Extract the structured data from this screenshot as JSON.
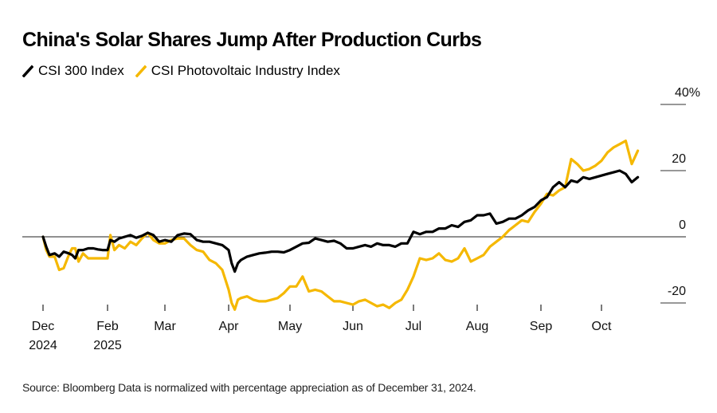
{
  "chart_data": {
    "type": "line",
    "title": "China's Solar Shares Jump After Production Curbs",
    "xlabel": "",
    "ylabel": "",
    "y_unit": "%",
    "ylim": [
      -20,
      40
    ],
    "y_ticks": [
      {
        "value": 40,
        "label": "40%"
      },
      {
        "value": 20,
        "label": "20"
      },
      {
        "value": 0,
        "label": "0"
      },
      {
        "value": -20,
        "label": "-20"
      }
    ],
    "x_ticks": [
      {
        "month": 0,
        "label": "Dec",
        "sublabel": "2024"
      },
      {
        "month": 1,
        "label": "Feb",
        "sublabel": "2025"
      },
      {
        "month": 2,
        "label": "Mar",
        "sublabel": ""
      },
      {
        "month": 3,
        "label": "Apr",
        "sublabel": ""
      },
      {
        "month": 4,
        "label": "May",
        "sublabel": ""
      },
      {
        "month": 5,
        "label": "Jun",
        "sublabel": ""
      },
      {
        "month": 6,
        "label": "Jul",
        "sublabel": ""
      },
      {
        "month": 7,
        "label": "Aug",
        "sublabel": ""
      },
      {
        "month": 8,
        "label": "Sep",
        "sublabel": ""
      },
      {
        "month": 9,
        "label": "Oct",
        "sublabel": ""
      }
    ],
    "baseline": 0,
    "legend_position": "top-left",
    "series": [
      {
        "name": "CSI 300 Index",
        "color": "#000000",
        "x": [
          0,
          0.05,
          0.1,
          0.18,
          0.25,
          0.32,
          0.4,
          0.45,
          0.5,
          0.55,
          0.62,
          0.7,
          0.78,
          0.85,
          0.92,
          1.0,
          1.05,
          1.12,
          1.2,
          1.3,
          1.4,
          1.5,
          1.6,
          1.7,
          1.8,
          1.9,
          2.0,
          2.1,
          2.2,
          2.3,
          2.4,
          2.5,
          2.6,
          2.7,
          2.8,
          2.9,
          3.0,
          3.05,
          3.1,
          3.15,
          3.2,
          3.3,
          3.4,
          3.5,
          3.6,
          3.7,
          3.8,
          3.9,
          4.0,
          4.1,
          4.2,
          4.3,
          4.4,
          4.5,
          4.6,
          4.7,
          4.8,
          4.9,
          5.0,
          5.1,
          5.2,
          5.3,
          5.4,
          5.5,
          5.6,
          5.7,
          5.8,
          5.9,
          6.0,
          6.1,
          6.2,
          6.3,
          6.4,
          6.5,
          6.6,
          6.7,
          6.8,
          6.9,
          7.0,
          7.1,
          7.2,
          7.3,
          7.4,
          7.5,
          7.6,
          7.7,
          7.8,
          7.9,
          8.0,
          8.1,
          8.2,
          8.3,
          8.4,
          8.5,
          8.6,
          8.7,
          8.8,
          8.9,
          9.0,
          9.1,
          9.2,
          9.3,
          9.4,
          9.5,
          9.6
        ],
        "values": [
          0,
          -3,
          -5.5,
          -5,
          -6,
          -4.5,
          -5,
          -5.5,
          -6.5,
          -4,
          -4,
          -3.5,
          -3.5,
          -3.8,
          -4,
          -4,
          -1,
          -1.5,
          -0.5,
          0,
          0.5,
          -0.3,
          0.3,
          1.2,
          0.5,
          -1.5,
          -1,
          -1.5,
          0.5,
          1,
          0.8,
          -1,
          -1.5,
          -1.5,
          -2,
          -2.5,
          -4,
          -8,
          -10.5,
          -8,
          -7,
          -6,
          -5.5,
          -5,
          -4.8,
          -4.5,
          -4.5,
          -4.7,
          -4,
          -3,
          -2,
          -1.8,
          -0.5,
          -1,
          -1.5,
          -1.2,
          -2,
          -3.5,
          -3.5,
          -3,
          -2.5,
          -3,
          -2,
          -2.5,
          -2.5,
          -3,
          -2,
          -2,
          1.5,
          0.8,
          1.5,
          1.5,
          2.5,
          2.5,
          3.5,
          3,
          4.5,
          5,
          6.5,
          6.5,
          7,
          4,
          4.5,
          5.5,
          5.5,
          6.5,
          8,
          9,
          11,
          12,
          15,
          16.5,
          15,
          17,
          16.5,
          18,
          17.5,
          18,
          18.5,
          19,
          19.5,
          20,
          19,
          16.5,
          18
        ]
      },
      {
        "name": "CSI Photovoltaic Industry Index",
        "color": "#F5B800",
        "x": [
          0,
          0.05,
          0.1,
          0.18,
          0.25,
          0.32,
          0.4,
          0.45,
          0.5,
          0.55,
          0.62,
          0.7,
          0.78,
          0.85,
          0.92,
          1.0,
          1.05,
          1.12,
          1.2,
          1.3,
          1.4,
          1.5,
          1.6,
          1.7,
          1.8,
          1.9,
          2.0,
          2.1,
          2.2,
          2.3,
          2.4,
          2.5,
          2.6,
          2.7,
          2.8,
          2.9,
          3.0,
          3.05,
          3.1,
          3.15,
          3.2,
          3.3,
          3.4,
          3.5,
          3.6,
          3.7,
          3.8,
          3.9,
          4.0,
          4.1,
          4.2,
          4.3,
          4.4,
          4.5,
          4.6,
          4.7,
          4.8,
          4.9,
          5.0,
          5.1,
          5.2,
          5.3,
          5.4,
          5.5,
          5.6,
          5.7,
          5.8,
          5.9,
          6.0,
          6.1,
          6.2,
          6.3,
          6.4,
          6.5,
          6.6,
          6.7,
          6.8,
          6.9,
          7.0,
          7.1,
          7.2,
          7.3,
          7.4,
          7.5,
          7.6,
          7.7,
          7.8,
          7.9,
          8.0,
          8.1,
          8.2,
          8.3,
          8.4,
          8.5,
          8.6,
          8.7,
          8.8,
          8.9,
          9.0,
          9.1,
          9.2,
          9.3,
          9.4,
          9.5,
          9.6
        ],
        "values": [
          0,
          -4,
          -6,
          -6,
          -10,
          -9.5,
          -5.5,
          -3.5,
          -3.5,
          -7.5,
          -5,
          -6.5,
          -6.5,
          -6.5,
          -6.5,
          -6.5,
          0.5,
          -4,
          -2.5,
          -3.5,
          -1.5,
          -2.5,
          -0.5,
          1.2,
          -1,
          -2,
          -2,
          -1,
          -0.5,
          -0.5,
          -2.5,
          -4,
          -4.5,
          -7,
          -8,
          -10,
          -16,
          -20,
          -22,
          -19,
          -18.5,
          -18,
          -19,
          -19.5,
          -19.5,
          -19,
          -18.5,
          -17,
          -15,
          -15,
          -12,
          -16.5,
          -16,
          -16.5,
          -18,
          -19.5,
          -19.5,
          -20,
          -20.5,
          -19.5,
          -19,
          -20,
          -21,
          -20.5,
          -21.5,
          -20,
          -19,
          -16,
          -12,
          -6.5,
          -7,
          -6.5,
          -5,
          -7,
          -7.5,
          -6.5,
          -3.5,
          -7.5,
          -6.5,
          -5.5,
          -3,
          -1.5,
          0,
          2,
          3.5,
          5,
          4.5,
          7.5,
          10,
          13,
          12.5,
          14,
          15,
          23.5,
          22,
          20,
          20.5,
          21.5,
          23,
          25.5,
          27,
          28,
          29,
          22,
          26
        ]
      }
    ],
    "source": "Source: Bloomberg Data is normalized with percentage appreciation as of December 31, 2024."
  }
}
